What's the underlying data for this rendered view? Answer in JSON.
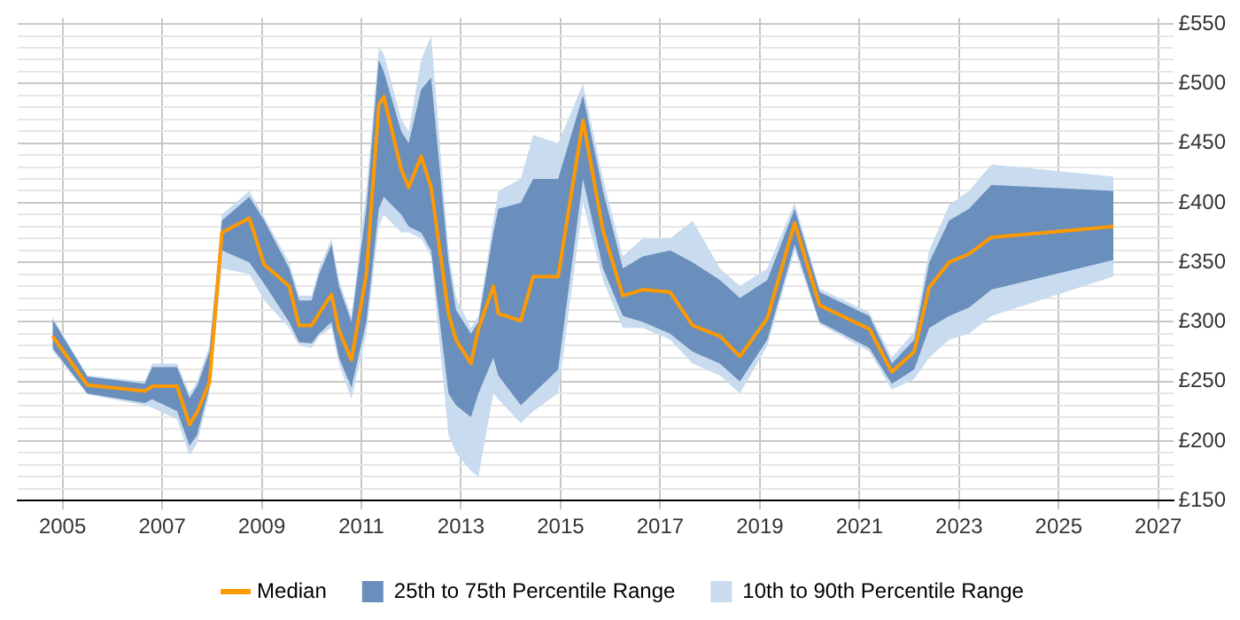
{
  "chart_data": {
    "type": "line",
    "x": [
      2004.8,
      2005.5,
      2006.65,
      2006.8,
      2007.3,
      2007.55,
      2007.7,
      2007.95,
      2008.2,
      2008.75,
      2009.05,
      2009.55,
      2009.75,
      2010.0,
      2010.15,
      2010.4,
      2010.55,
      2010.8,
      2011.1,
      2011.35,
      2011.45,
      2011.8,
      2011.95,
      2012.2,
      2012.4,
      2012.75,
      2012.9,
      2013.2,
      2013.35,
      2013.65,
      2013.75,
      2014.2,
      2014.45,
      2014.95,
      2015.45,
      2015.85,
      2016.25,
      2016.65,
      2017.2,
      2017.65,
      2018.2,
      2018.6,
      2019.15,
      2019.7,
      2020.2,
      2021.2,
      2021.65,
      2022.1,
      2022.4,
      2022.8,
      2023.2,
      2023.65,
      2026.1
    ],
    "series": [
      {
        "name": "Median",
        "type": "line",
        "color": "#ff9900",
        "values": [
          288,
          247,
          242,
          246,
          246,
          214,
          224,
          249,
          375,
          387,
          348,
          330,
          297,
          297,
          307,
          323,
          293,
          268,
          340,
          482,
          489,
          428,
          413,
          439,
          413,
          307,
          285,
          265,
          294,
          330,
          307,
          301,
          338,
          338,
          469,
          377,
          322,
          327,
          325,
          297,
          288,
          271,
          303,
          383,
          314,
          294,
          258,
          275,
          329,
          350,
          357,
          371,
          380
        ]
      },
      {
        "name": "25th to 75th Percentile Range",
        "type": "line",
        "color": "#6a8fbc",
        "values": [
          null,
          null,
          null,
          null,
          null,
          null,
          null,
          null,
          null,
          null,
          null,
          null,
          null,
          null,
          null,
          null,
          null,
          null,
          null,
          null,
          null,
          null,
          null,
          null,
          null,
          null,
          null,
          null,
          null,
          null,
          null,
          null,
          null,
          null,
          null,
          null,
          null,
          null,
          null,
          null,
          null,
          null,
          null,
          null,
          null,
          null,
          null,
          null,
          null,
          null,
          null,
          null,
          null
        ],
        "lower": [
          278,
          240,
          232,
          235,
          225,
          196,
          205,
          245,
          360,
          350,
          332,
          300,
          283,
          282,
          290,
          300,
          270,
          245,
          300,
          395,
          405,
          390,
          380,
          375,
          360,
          240,
          230,
          220,
          240,
          270,
          255,
          230,
          240,
          260,
          420,
          345,
          305,
          300,
          290,
          275,
          265,
          250,
          285,
          365,
          300,
          278,
          248,
          260,
          295,
          305,
          312,
          327,
          352
        ],
        "upper": [
          302,
          254,
          248,
          262,
          262,
          236,
          246,
          275,
          385,
          405,
          385,
          345,
          318,
          318,
          340,
          365,
          330,
          300,
          395,
          520,
          510,
          460,
          450,
          495,
          505,
          350,
          310,
          290,
          300,
          375,
          395,
          400,
          420,
          420,
          490,
          410,
          345,
          355,
          360,
          350,
          335,
          320,
          335,
          395,
          325,
          305,
          265,
          285,
          350,
          385,
          395,
          415,
          410
        ]
      },
      {
        "name": "10th to 90th Percentile Range",
        "type": "line",
        "color": "#c9dbee",
        "values": [
          null,
          null,
          null,
          null,
          null,
          null,
          null,
          null,
          null,
          null,
          null,
          null,
          null,
          null,
          null,
          null,
          null,
          null,
          null,
          null,
          null,
          null,
          null,
          null,
          null,
          null,
          null,
          null,
          null,
          null,
          null,
          null,
          null,
          null,
          null,
          null,
          null,
          null,
          null,
          null,
          null,
          null,
          null,
          null,
          null,
          null,
          null,
          null,
          null,
          null,
          null,
          null,
          null
        ],
        "lower": [
          276,
          239,
          230,
          228,
          218,
          188,
          198,
          240,
          345,
          340,
          318,
          295,
          280,
          278,
          288,
          295,
          265,
          235,
          290,
          380,
          390,
          375,
          375,
          370,
          355,
          205,
          190,
          175,
          170,
          240,
          235,
          215,
          225,
          240,
          400,
          335,
          295,
          295,
          285,
          265,
          255,
          240,
          280,
          360,
          298,
          275,
          243,
          252,
          270,
          285,
          290,
          305,
          338
        ],
        "upper": [
          304,
          255,
          250,
          265,
          265,
          240,
          250,
          280,
          390,
          410,
          388,
          350,
          322,
          322,
          345,
          370,
          335,
          305,
          410,
          530,
          525,
          470,
          460,
          520,
          540,
          360,
          320,
          295,
          305,
          385,
          410,
          420,
          457,
          450,
          500,
          420,
          355,
          370,
          370,
          385,
          345,
          330,
          345,
          400,
          328,
          308,
          270,
          292,
          360,
          398,
          410,
          432,
          422
        ]
      }
    ],
    "xlim": [
      2004.1,
      2027.3
    ],
    "xticks": [
      2005,
      2007,
      2009,
      2011,
      2013,
      2015,
      2017,
      2019,
      2021,
      2023,
      2025,
      2027
    ],
    "ylim": [
      150,
      555
    ],
    "yticks": [
      {
        "value": 150,
        "label": "£150"
      },
      {
        "value": 160,
        "label": null
      },
      {
        "value": 170,
        "label": null
      },
      {
        "value": 180,
        "label": null
      },
      {
        "value": 190,
        "label": null
      },
      {
        "value": 200,
        "label": "£200"
      },
      {
        "value": 210,
        "label": null
      },
      {
        "value": 220,
        "label": null
      },
      {
        "value": 230,
        "label": null
      },
      {
        "value": 240,
        "label": null
      },
      {
        "value": 250,
        "label": "£250"
      },
      {
        "value": 260,
        "label": null
      },
      {
        "value": 270,
        "label": null
      },
      {
        "value": 280,
        "label": null
      },
      {
        "value": 290,
        "label": null
      },
      {
        "value": 300,
        "label": "£300"
      },
      {
        "value": 310,
        "label": null
      },
      {
        "value": 320,
        "label": null
      },
      {
        "value": 330,
        "label": null
      },
      {
        "value": 340,
        "label": null
      },
      {
        "value": 350,
        "label": "£350"
      },
      {
        "value": 360,
        "label": null
      },
      {
        "value": 370,
        "label": null
      },
      {
        "value": 380,
        "label": null
      },
      {
        "value": 390,
        "label": null
      },
      {
        "value": 400,
        "label": "£400"
      },
      {
        "value": 410,
        "label": null
      },
      {
        "value": 420,
        "label": null
      },
      {
        "value": 430,
        "label": null
      },
      {
        "value": 440,
        "label": null
      },
      {
        "value": 450,
        "label": "£450"
      },
      {
        "value": 460,
        "label": null
      },
      {
        "value": 470,
        "label": null
      },
      {
        "value": 480,
        "label": null
      },
      {
        "value": 490,
        "label": null
      },
      {
        "value": 500,
        "label": "£500"
      },
      {
        "value": 510,
        "label": null
      },
      {
        "value": 520,
        "label": null
      },
      {
        "value": 530,
        "label": null
      },
      {
        "value": 540,
        "label": null
      },
      {
        "value": 550,
        "label": "£550"
      }
    ],
    "grid": true,
    "legend": "bottom"
  }
}
